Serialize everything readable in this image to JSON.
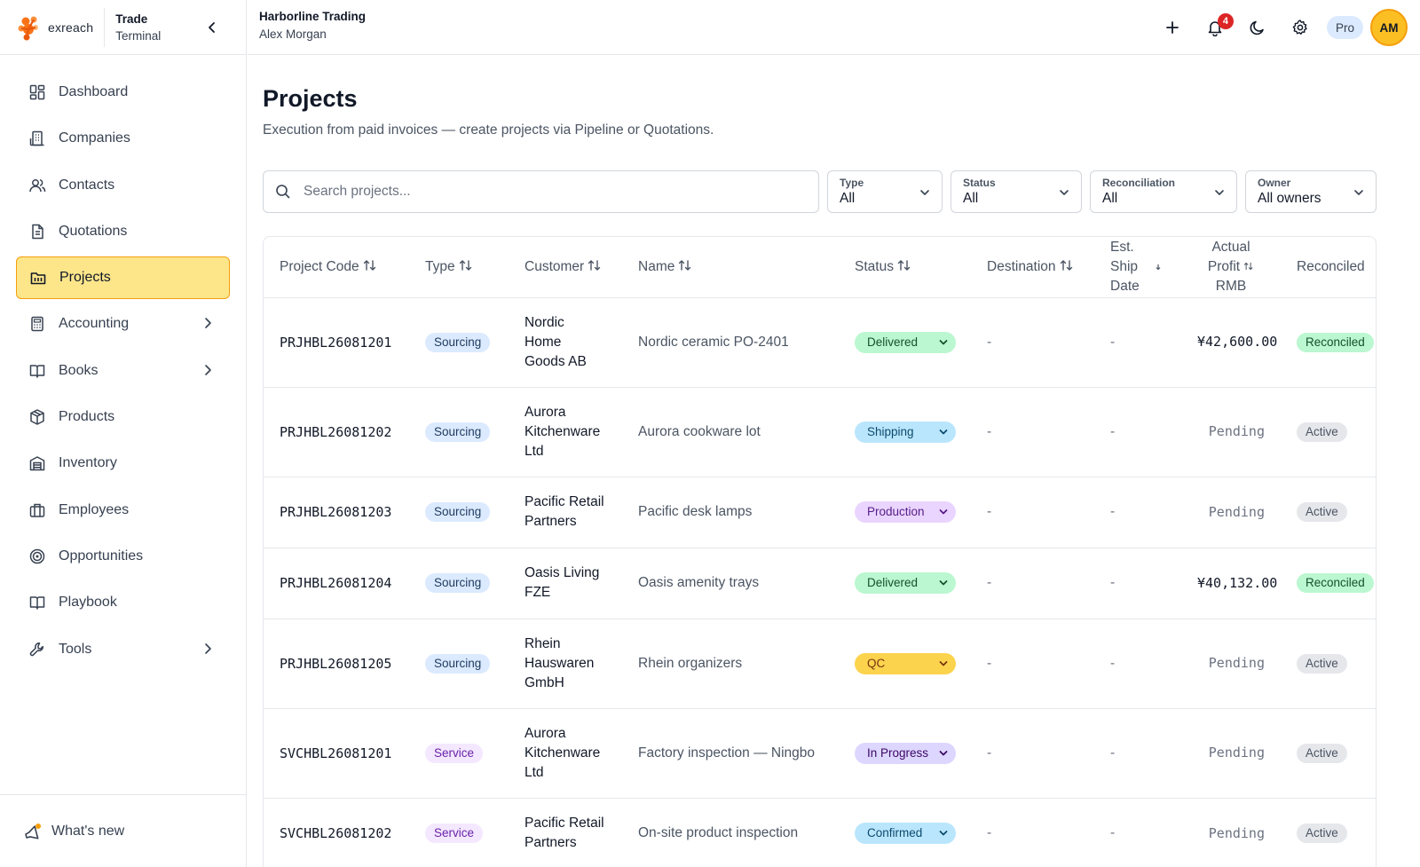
{
  "brand": {
    "logo_text": "exreach",
    "name_line1": "Trade",
    "name_line2": "Terminal"
  },
  "org": {
    "company": "Harborline Trading",
    "user": "Alex Morgan"
  },
  "topbar": {
    "notifications": "4",
    "plan": "Pro",
    "avatar_initials": "AM"
  },
  "nav": [
    {
      "label": "Dashboard",
      "icon": "dashboard-icon"
    },
    {
      "label": "Companies",
      "icon": "building-icon"
    },
    {
      "label": "Contacts",
      "icon": "users-icon"
    },
    {
      "label": "Quotations",
      "icon": "document-icon"
    },
    {
      "label": "Projects",
      "icon": "folder-icon",
      "active": true
    },
    {
      "label": "Accounting",
      "icon": "calculator-icon",
      "expandable": true
    },
    {
      "label": "Books",
      "icon": "book-icon",
      "expandable": true
    },
    {
      "label": "Products",
      "icon": "package-icon"
    },
    {
      "label": "Inventory",
      "icon": "warehouse-icon"
    },
    {
      "label": "Employees",
      "icon": "briefcase-icon"
    },
    {
      "label": "Opportunities",
      "icon": "target-icon"
    },
    {
      "label": "Playbook",
      "icon": "open-book-icon"
    },
    {
      "label": "Tools",
      "icon": "wrench-icon",
      "expandable": true
    }
  ],
  "whats_new": "What's new",
  "page": {
    "title": "Projects",
    "subtitle": "Execution from paid invoices — create projects via Pipeline or Quotations."
  },
  "filters": {
    "search_placeholder": "Search projects...",
    "type": {
      "label": "Type",
      "value": "All"
    },
    "status": {
      "label": "Status",
      "value": "All"
    },
    "reconciliation": {
      "label": "Reconciliation",
      "value": "All"
    },
    "owner": {
      "label": "Owner",
      "value": "All owners"
    }
  },
  "table": {
    "headers": {
      "code": "Project Code",
      "type": "Type",
      "customer": "Customer",
      "name": "Name",
      "status": "Status",
      "destination": "Destination",
      "ship_l1": "Est.",
      "ship_l2": "Ship",
      "ship_l3": "Date",
      "profit_l1": "Actual",
      "profit_l2": "Profit",
      "profit_l3": "RMB",
      "reconciled": "Reconciled"
    },
    "rows": [
      {
        "code": "PRJHBL26081201",
        "type": "Sourcing",
        "type_kind": "sourcing",
        "customer_lines": [
          "Nordic",
          "Home",
          "Goods AB"
        ],
        "name": "Nordic ceramic PO-2401",
        "status": "Delivered",
        "status_kind": "delivered",
        "destination": "-",
        "ship_date": "-",
        "profit": "¥42,600.00",
        "profit_pending": false,
        "reconciled": "Reconciled",
        "rec_kind": "reconciled",
        "height": 101
      },
      {
        "code": "PRJHBL26081202",
        "type": "Sourcing",
        "type_kind": "sourcing",
        "customer_lines": [
          "Aurora",
          "Kitchenware",
          "Ltd"
        ],
        "name": "Aurora cookware lot",
        "status": "Shipping",
        "status_kind": "shipping",
        "destination": "-",
        "ship_date": "-",
        "profit": "Pending",
        "profit_pending": true,
        "reconciled": "Active",
        "rec_kind": "active",
        "height": 101
      },
      {
        "code": "PRJHBL26081203",
        "type": "Sourcing",
        "type_kind": "sourcing",
        "customer_lines": [
          "Pacific Retail",
          "Partners"
        ],
        "name": "Pacific desk lamps",
        "status": "Production",
        "status_kind": "production",
        "destination": "-",
        "ship_date": "-",
        "profit": "Pending",
        "profit_pending": true,
        "reconciled": "Active",
        "rec_kind": "active",
        "height": 80
      },
      {
        "code": "PRJHBL26081204",
        "type": "Sourcing",
        "type_kind": "sourcing",
        "customer_lines": [
          "Oasis Living",
          "FZE"
        ],
        "name": "Oasis amenity trays",
        "status": "Delivered",
        "status_kind": "delivered",
        "destination": "-",
        "ship_date": "-",
        "profit": "¥40,132.00",
        "profit_pending": false,
        "reconciled": "Reconciled",
        "rec_kind": "reconciled",
        "height": 80
      },
      {
        "code": "PRJHBL26081205",
        "type": "Sourcing",
        "type_kind": "sourcing",
        "customer_lines": [
          "Rhein",
          "Hauswaren",
          "GmbH"
        ],
        "name": "Rhein organizers",
        "status": "QC",
        "status_kind": "qc",
        "destination": "-",
        "ship_date": "-",
        "profit": "Pending",
        "profit_pending": true,
        "reconciled": "Active",
        "rec_kind": "active",
        "height": 101
      },
      {
        "code": "SVCHBL26081201",
        "type": "Service",
        "type_kind": "service",
        "customer_lines": [
          "Aurora",
          "Kitchenware",
          "Ltd"
        ],
        "name": "Factory inspection — Ningbo",
        "status": "In Progress",
        "status_kind": "inprogress",
        "destination": "-",
        "ship_date": "-",
        "profit": "Pending",
        "profit_pending": true,
        "reconciled": "Active",
        "rec_kind": "active",
        "height": 101
      },
      {
        "code": "SVCHBL26081202",
        "type": "Service",
        "type_kind": "service",
        "customer_lines": [
          "Pacific Retail",
          "Partners"
        ],
        "name": "On-site product inspection",
        "status": "Confirmed",
        "status_kind": "confirmed",
        "destination": "-",
        "ship_date": "-",
        "profit": "Pending",
        "profit_pending": true,
        "reconciled": "Active",
        "rec_kind": "active",
        "height": 80
      }
    ]
  }
}
